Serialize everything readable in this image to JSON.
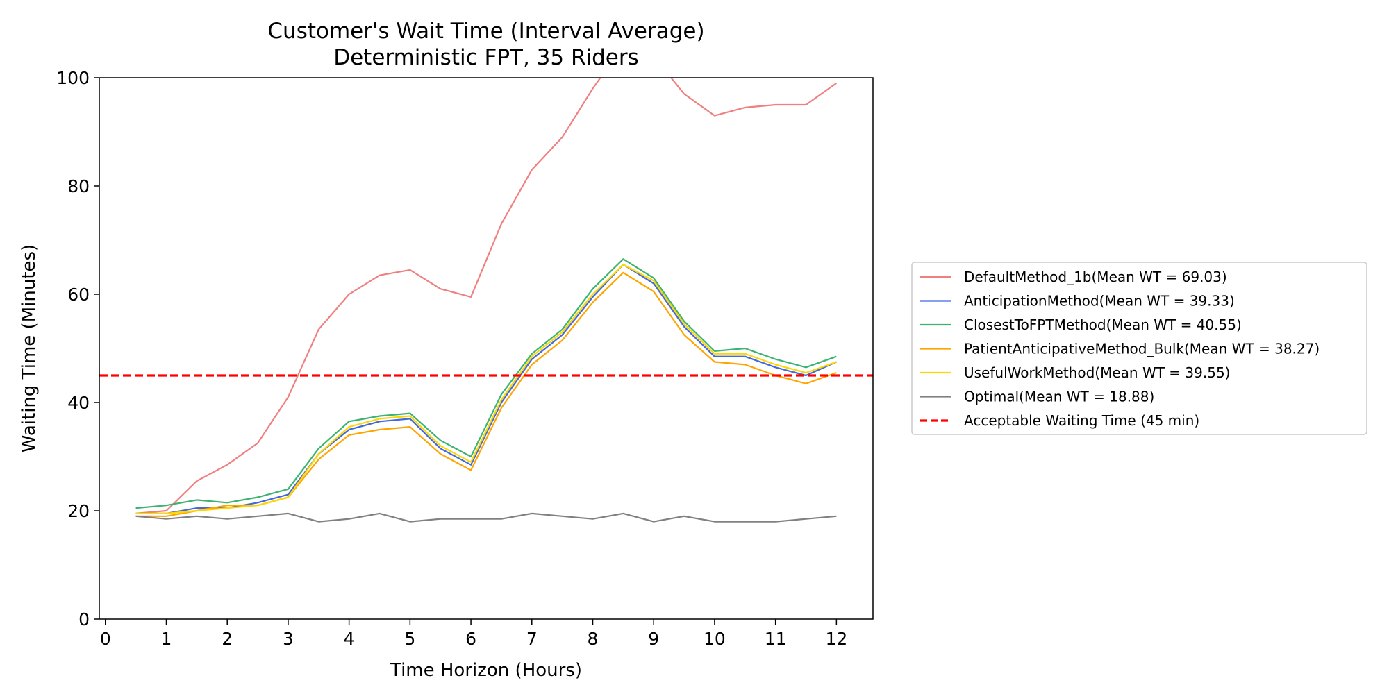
{
  "chart_data": {
    "type": "line",
    "title": "Customer's Wait Time (Interval Average)",
    "subtitle": "Deterministic FPT, 35 Riders",
    "xlabel": "Time Horizon (Hours)",
    "ylabel": "Waiting Time (Minutes)",
    "xlim": [
      -0.1,
      12.6
    ],
    "ylim": [
      0,
      100
    ],
    "xticks": [
      "0",
      "1",
      "2",
      "3",
      "4",
      "5",
      "6",
      "7",
      "8",
      "9",
      "10",
      "11",
      "12"
    ],
    "yticks": [
      "0",
      "20",
      "40",
      "60",
      "80",
      "100"
    ],
    "grid": false,
    "legend_position": "right-outside",
    "x": [
      0.5,
      1,
      1.5,
      2,
      2.5,
      3,
      3.5,
      4,
      4.5,
      5,
      5.5,
      6,
      6.5,
      7,
      7.5,
      8,
      8.5,
      9,
      9.5,
      10,
      10.5,
      11,
      11.5,
      12
    ],
    "series": [
      {
        "name": "DefaultMethod_1b(Mean WT = 69.03)",
        "color": "#f08080",
        "values": [
          19.5,
          20.0,
          25.5,
          28.5,
          32.5,
          41.0,
          53.5,
          60.0,
          63.5,
          64.5,
          61.0,
          59.5,
          73.0,
          83.0,
          89.0,
          98.0,
          106.0,
          104.0,
          97.0,
          93.0,
          94.5,
          95.0,
          95.0,
          99.0
        ]
      },
      {
        "name": "AnticipationMethod(Mean WT = 39.33)",
        "color": "#4169e1",
        "values": [
          19.5,
          19.5,
          20.5,
          20.5,
          21.5,
          23.0,
          30.5,
          35.0,
          36.5,
          37.0,
          31.5,
          28.5,
          40.0,
          48.0,
          52.5,
          59.5,
          65.5,
          62.0,
          54.0,
          48.5,
          48.5,
          46.5,
          45.0,
          47.5
        ]
      },
      {
        "name": "ClosestToFPTMethod(Mean WT = 40.55)",
        "color": "#3cb371",
        "values": [
          20.5,
          21.0,
          22.0,
          21.5,
          22.5,
          24.0,
          31.5,
          36.5,
          37.5,
          38.0,
          33.0,
          30.0,
          41.5,
          49.0,
          53.5,
          61.0,
          66.5,
          63.0,
          55.0,
          49.5,
          50.0,
          48.0,
          46.5,
          48.5
        ]
      },
      {
        "name": "PatientAnticipativeMethod_Bulk(Mean WT = 38.27)",
        "color": "#ffa500",
        "values": [
          19.0,
          19.0,
          20.0,
          21.0,
          21.0,
          22.5,
          29.5,
          34.0,
          35.0,
          35.5,
          30.5,
          27.5,
          39.0,
          47.0,
          51.5,
          58.5,
          64.0,
          60.5,
          52.5,
          47.5,
          47.0,
          45.0,
          43.5,
          45.5
        ]
      },
      {
        "name": "UsefulWorkMethod(Mean WT = 39.55)",
        "color": "#ffd700",
        "values": [
          19.5,
          19.5,
          20.0,
          20.5,
          21.0,
          22.5,
          30.5,
          35.5,
          37.0,
          37.5,
          32.0,
          29.0,
          40.5,
          48.5,
          53.0,
          60.0,
          65.5,
          62.5,
          54.5,
          49.0,
          49.0,
          47.0,
          45.5,
          47.5
        ]
      },
      {
        "name": "Optimal(Mean WT = 18.88)",
        "color": "#808080",
        "values": [
          19.0,
          18.5,
          19.0,
          18.5,
          19.0,
          19.5,
          18.0,
          18.5,
          19.5,
          18.0,
          18.5,
          18.5,
          18.5,
          19.5,
          19.0,
          18.5,
          19.5,
          18.0,
          19.0,
          18.0,
          18.0,
          18.0,
          18.5,
          19.0
        ]
      }
    ],
    "reference_line": {
      "name": "Acceptable Waiting Time (45 min)",
      "y": 45,
      "color": "#ff0000",
      "style": "dashed"
    }
  }
}
